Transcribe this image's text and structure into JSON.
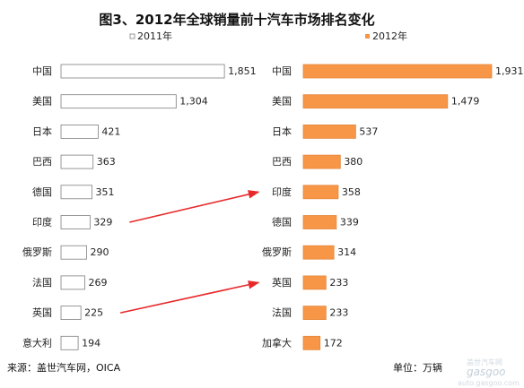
{
  "chart_data": {
    "type": "bar",
    "title": "图3、2012年全球销量前十汽车市场排名变化",
    "series": [
      {
        "name": "2011年",
        "color": "#ffffff",
        "border": "#7f7f7f",
        "categories": [
          "中国",
          "美国",
          "日本",
          "巴西",
          "德国",
          "印度",
          "俄罗斯",
          "法国",
          "英国",
          "意大利"
        ],
        "values": [
          1851,
          1304,
          421,
          363,
          351,
          329,
          290,
          269,
          225,
          194
        ],
        "value_labels": [
          "1,851",
          "1,304",
          "421",
          "363",
          "351",
          "329",
          "290",
          "269",
          "225",
          "194"
        ]
      },
      {
        "name": "2012年",
        "color": "#f79646",
        "border": "#e4873c",
        "categories": [
          "中国",
          "美国",
          "日本",
          "巴西",
          "印度",
          "德国",
          "俄罗斯",
          "英国",
          "法国",
          "加拿大"
        ],
        "values": [
          1931,
          1479,
          537,
          380,
          358,
          339,
          314,
          233,
          233,
          172
        ],
        "value_labels": [
          "1,931",
          "1,479",
          "537",
          "380",
          "358",
          "339",
          "314",
          "233",
          "233",
          "172"
        ]
      }
    ],
    "annotations": [
      {
        "type": "arrow",
        "from": "印度 (2011年)",
        "to": "印度 (2012年)",
        "color": "#e8292b"
      },
      {
        "type": "arrow",
        "from": "英国 (2011年)",
        "to": "英国 (2012年)",
        "color": "#e8292b"
      }
    ]
  },
  "footer": {
    "source": "来源：盖世汽车网，OICA",
    "unit": "单位：万辆"
  },
  "watermark": {
    "brand": "gasgoo",
    "cn": "盖世汽车网",
    "url": "auto.gasgoo.com"
  }
}
